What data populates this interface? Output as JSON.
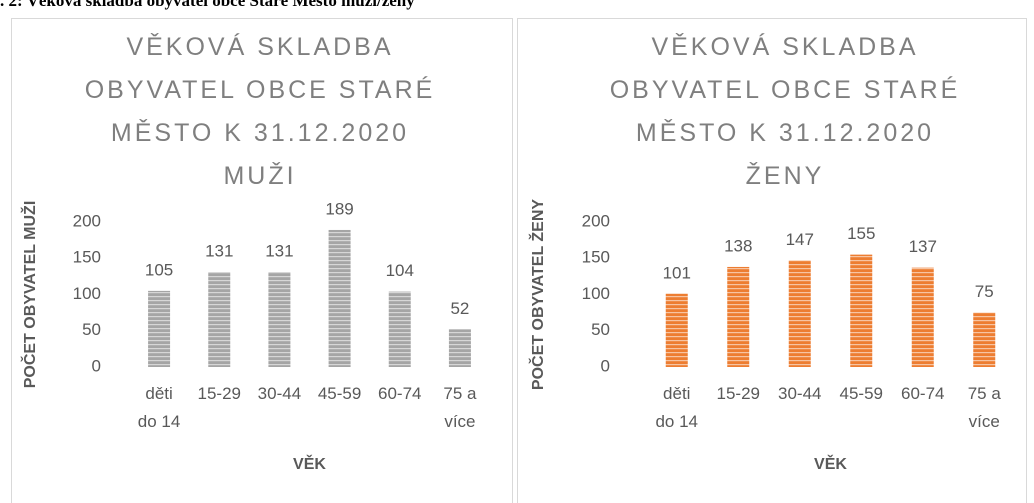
{
  "caption": ". 2: Věková skladba obyvatel obce Staré Město muži/ženy",
  "chart_data": [
    {
      "type": "bar",
      "title": "VĚKOVÁ SKLADBA OBYVATEL OBCE STARÉ MĚSTO K 31.12.2020 MUŽI",
      "x_label": "VĚK",
      "y_label": "POČET OBYVATEL MUŽI",
      "categories": [
        "děti do 14",
        "15-29",
        "30-44",
        "45-59",
        "60-74",
        "75 a více"
      ],
      "values": [
        105,
        131,
        131,
        189,
        104,
        52
      ],
      "color": "#a5a5a5",
      "ylim": [
        0,
        200
      ],
      "yticks": [
        0,
        50,
        100,
        150,
        200
      ],
      "grid": false
    },
    {
      "type": "bar",
      "title": "VĚKOVÁ SKLADBA OBYVATEL OBCE STARÉ MĚSTO K 31.12.2020 ŽENY",
      "x_label": "VĚK",
      "y_label": "POČET OBYVATEL ŽENY",
      "categories": [
        "děti do 14",
        "15-29",
        "30-44",
        "45-59",
        "60-74",
        "75 a více"
      ],
      "values": [
        101,
        138,
        147,
        155,
        137,
        75
      ],
      "color": "#ed7d31",
      "ylim": [
        0,
        200
      ],
      "yticks": [
        0,
        50,
        100,
        150,
        200
      ],
      "grid": false
    }
  ]
}
